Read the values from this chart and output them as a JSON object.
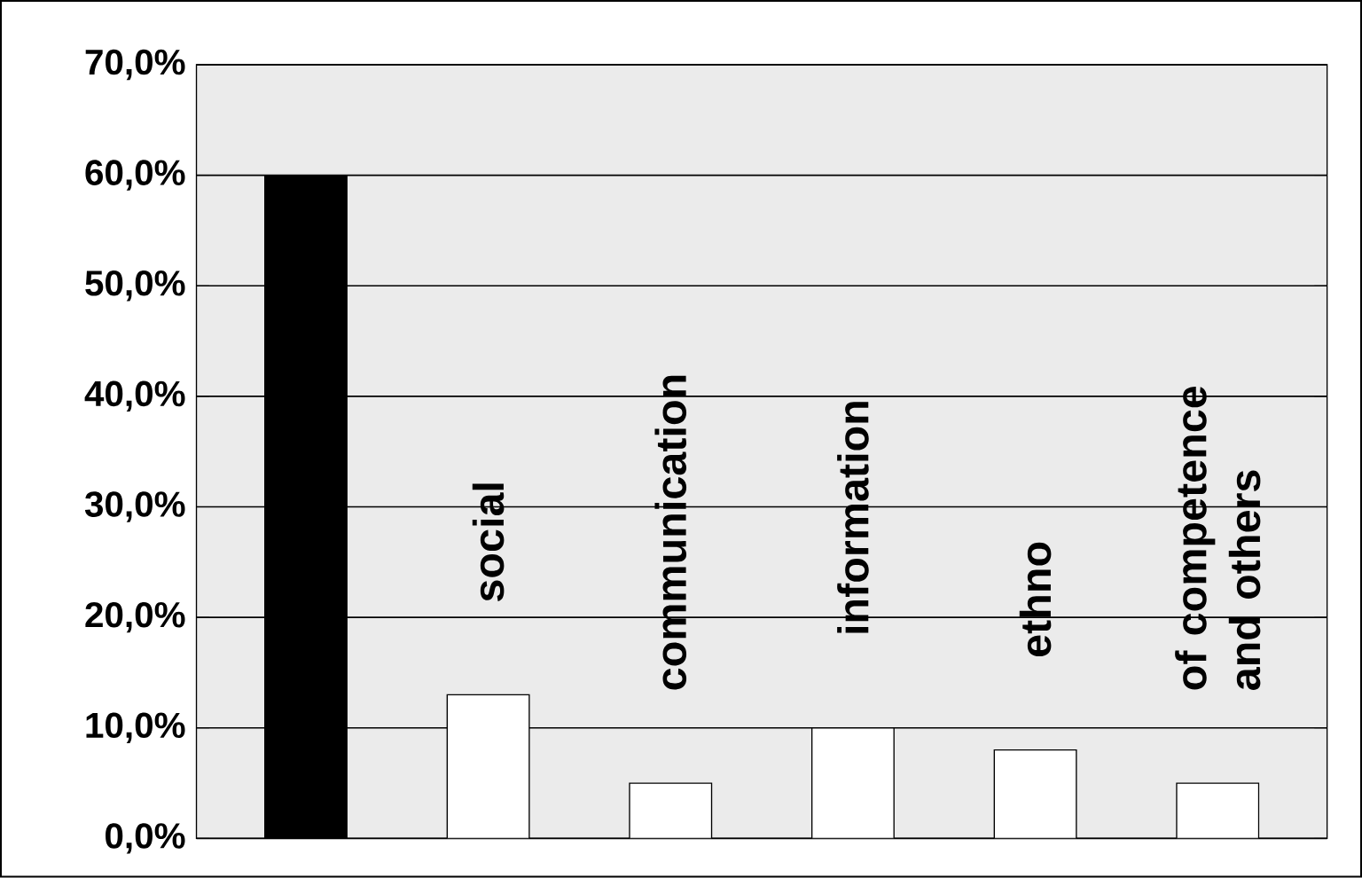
{
  "chart_data": {
    "type": "bar",
    "categories": [
      null,
      "social",
      "communication",
      "information",
      "ethno",
      "of competence and others"
    ],
    "values": [
      60,
      13,
      5,
      10,
      8,
      5
    ],
    "colors": [
      "#000000",
      "#ffffff",
      "#ffffff",
      "#ffffff",
      "#ffffff",
      "#ffffff"
    ],
    "ylim": [
      0,
      70
    ],
    "yticks": [
      {
        "value": 0,
        "label": "0,0%"
      },
      {
        "value": 10,
        "label": "10,0%"
      },
      {
        "value": 20,
        "label": "20,0%"
      },
      {
        "value": 30,
        "label": "30,0%"
      },
      {
        "value": 40,
        "label": "40,0%"
      },
      {
        "value": 50,
        "label": "50,0%"
      },
      {
        "value": 60,
        "label": "60,0%"
      },
      {
        "value": 70,
        "label": "70,0%"
      }
    ],
    "grid": "y"
  }
}
